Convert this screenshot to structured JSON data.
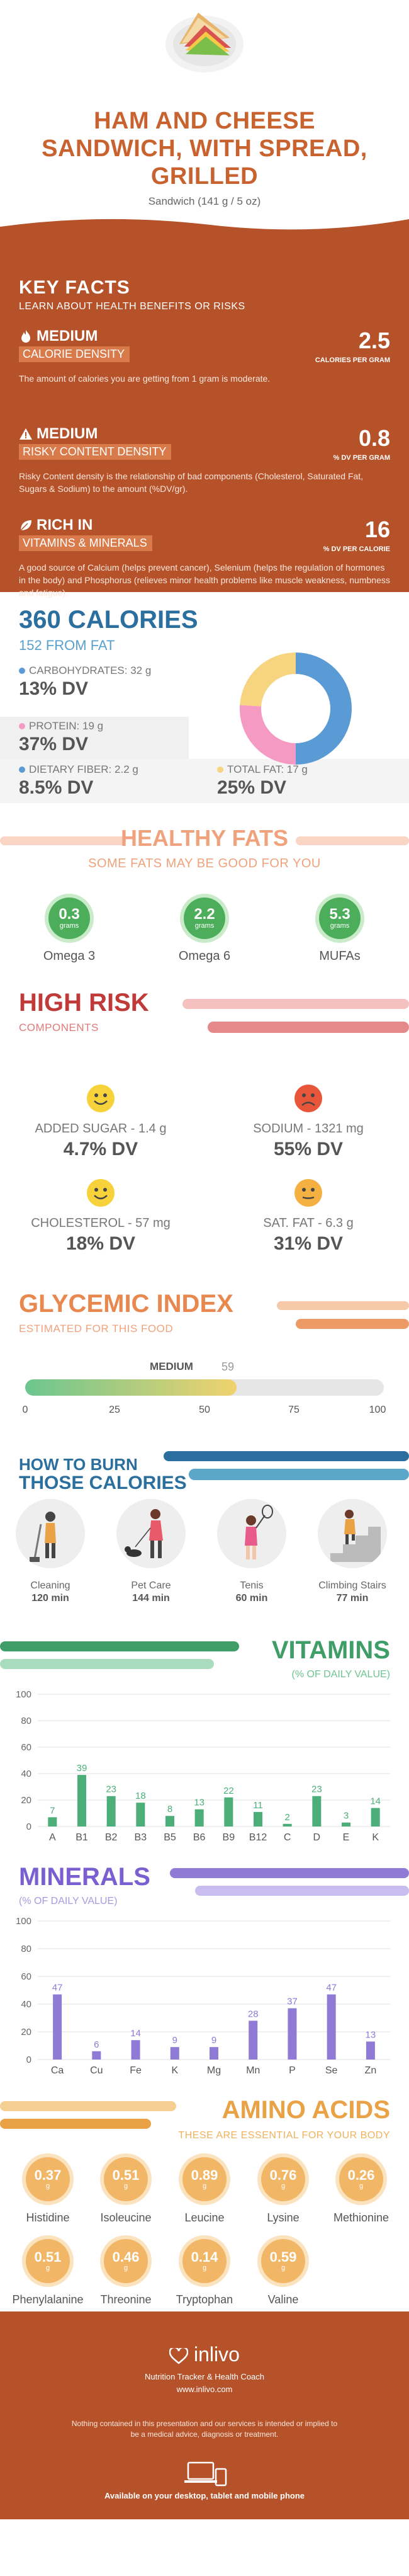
{
  "header": {
    "title_line1": "HAM AND CHEESE",
    "title_line2": "SANDWICH, WITH SPREAD,",
    "title_line3": "GRILLED",
    "serving": "Sandwich (141 g / 5 oz)"
  },
  "key_facts": {
    "title": "KEY FACTS",
    "subtitle": "LEARN ABOUT HEALTH BENEFITS OR RISKS",
    "items": [
      {
        "level": "MEDIUM",
        "label": "CALORIE DENSITY",
        "value": "2.5",
        "unit": "CALORIES PER GRAM",
        "description": "The amount of calories you are getting from 1 gram is moderate."
      },
      {
        "level": "MEDIUM",
        "label": "RISKY CONTENT DENSITY",
        "value": "0.8",
        "unit": "% DV PER GRAM",
        "description": "Risky Content density is the relationship of bad components (Cholesterol, Saturated Fat, Sugars & Sodium) to the amount (%DV/gr)."
      },
      {
        "level": "RICH  IN",
        "label": "VITAMINS & MINERALS",
        "value": "16",
        "unit": "% DV PER CALORIE",
        "description": "A good source of Calcium (helps prevent cancer), Selenium (helps the regulation of hormones in the body) and Phosphorus (relieves minor health problems like muscle weakness, numbness and fatigue)."
      }
    ]
  },
  "calories": {
    "title": "360 CALORIES",
    "from_fat": "152 FROM FAT",
    "carbs": {
      "label": "CARBOHYDRATES: 32 g",
      "dv": "13% DV",
      "color": "#5b9bd5"
    },
    "protein": {
      "label": "PROTEIN: 19 g",
      "dv": "37% DV",
      "color": "#f59ac2"
    },
    "fiber": {
      "label": "DIETARY FIBER: 2.2 g",
      "dv": "8.5% DV",
      "color": "#5b9bd5"
    },
    "fat": {
      "label": "TOTAL FAT: 17 g",
      "dv": "25% DV",
      "color": "#f7d580"
    },
    "donut": [
      {
        "value": 0.5,
        "color": "#5b9bd5"
      },
      {
        "value": 0.26,
        "color": "#f59ac2"
      },
      {
        "value": 0.24,
        "color": "#f7d580"
      }
    ]
  },
  "healthy_fats": {
    "title": "HEALTHY FATS",
    "subtitle": "SOME FATS MAY BE GOOD FOR YOU",
    "items": [
      {
        "value": "0.3",
        "unit": "grams",
        "name": "Omega 3"
      },
      {
        "value": "2.2",
        "unit": "grams",
        "name": "Omega 6"
      },
      {
        "value": "5.3",
        "unit": "grams",
        "name": "MUFAs"
      }
    ]
  },
  "high_risk": {
    "title": "HIGH RISK",
    "subtitle": "COMPONENTS",
    "items": [
      {
        "label": "ADDED SUGAR - 1.4 g",
        "dv": "4.7% DV",
        "face": "happy"
      },
      {
        "label": "SODIUM - 1321 mg",
        "dv": "55% DV",
        "face": "sad"
      },
      {
        "label": "CHOLESTEROL - 57 mg",
        "dv": "18% DV",
        "face": "happy"
      },
      {
        "label": "SAT. FAT - 6.3 g",
        "dv": "31% DV",
        "face": "neutral"
      }
    ]
  },
  "glycemic": {
    "title": "GLYCEMIC INDEX",
    "subtitle": "ESTIMATED FOR THIS FOOD",
    "level": "MEDIUM",
    "value": 59,
    "value_label": "59",
    "ticks": [
      "0",
      "25",
      "50",
      "75",
      "100"
    ]
  },
  "burn": {
    "title_line1": "HOW TO BURN",
    "title_line2": "THOSE CALORIES",
    "items": [
      {
        "name": "Cleaning",
        "minutes": "120 min"
      },
      {
        "name": "Pet Care",
        "minutes": "144 min"
      },
      {
        "name": "Tenis",
        "minutes": "60 min"
      },
      {
        "name": "Climbing Stairs",
        "minutes": "77 min"
      }
    ]
  },
  "vitamins": {
    "title": "VITAMINS",
    "subtitle": "(% OF DAILY VALUE)",
    "chart_data": {
      "type": "bar",
      "categories": [
        "A",
        "B1",
        "B2",
        "B3",
        "B5",
        "B6",
        "B9",
        "B12",
        "C",
        "D",
        "E",
        "K"
      ],
      "values": [
        7,
        39,
        23,
        18,
        8,
        13,
        22,
        11,
        2,
        23,
        3,
        14
      ],
      "ylim": [
        0,
        100
      ],
      "yticks": [
        "0",
        "20",
        "40",
        "60",
        "80",
        "100"
      ],
      "color": "#4caf7a"
    }
  },
  "minerals": {
    "title": "MINERALS",
    "subtitle": "(% OF DAILY VALUE)",
    "chart_data": {
      "type": "bar",
      "categories": [
        "Ca",
        "Cu",
        "Fe",
        "K",
        "Mg",
        "Mn",
        "P",
        "Se",
        "Zn"
      ],
      "values": [
        47,
        6,
        14,
        9,
        9,
        28,
        37,
        47,
        13
      ],
      "ylim": [
        0,
        100
      ],
      "yticks": [
        "0",
        "20",
        "40",
        "60",
        "80",
        "100"
      ],
      "color": "#8f7ad6"
    }
  },
  "amino": {
    "title": "AMINO ACIDS",
    "subtitle": "THESE ARE ESSENTIAL FOR YOUR BODY",
    "items": [
      {
        "value": "0.37",
        "unit": "g",
        "name": "Histidine"
      },
      {
        "value": "0.51",
        "unit": "g",
        "name": "Isoleucine"
      },
      {
        "value": "0.89",
        "unit": "g",
        "name": "Leucine"
      },
      {
        "value": "0.76",
        "unit": "g",
        "name": "Lysine"
      },
      {
        "value": "0.26",
        "unit": "g",
        "name": "Methionine"
      },
      {
        "value": "0.51",
        "unit": "g",
        "name": "Phenylalanine"
      },
      {
        "value": "0.46",
        "unit": "g",
        "name": "Threonine"
      },
      {
        "value": "0.14",
        "unit": "g",
        "name": "Tryptophan"
      },
      {
        "value": "0.59",
        "unit": "g",
        "name": "Valine"
      }
    ]
  },
  "footer": {
    "brand": "inlivo",
    "tagline": "Nutrition Tracker & Health Coach",
    "url": "www.inlivo.com",
    "disclaimer": "Nothing contained in this presentation and our services is intended or implied to be a medical advice, diagnosis or treatment.",
    "available": "Available on your desktop, tablet and mobile phone"
  }
}
